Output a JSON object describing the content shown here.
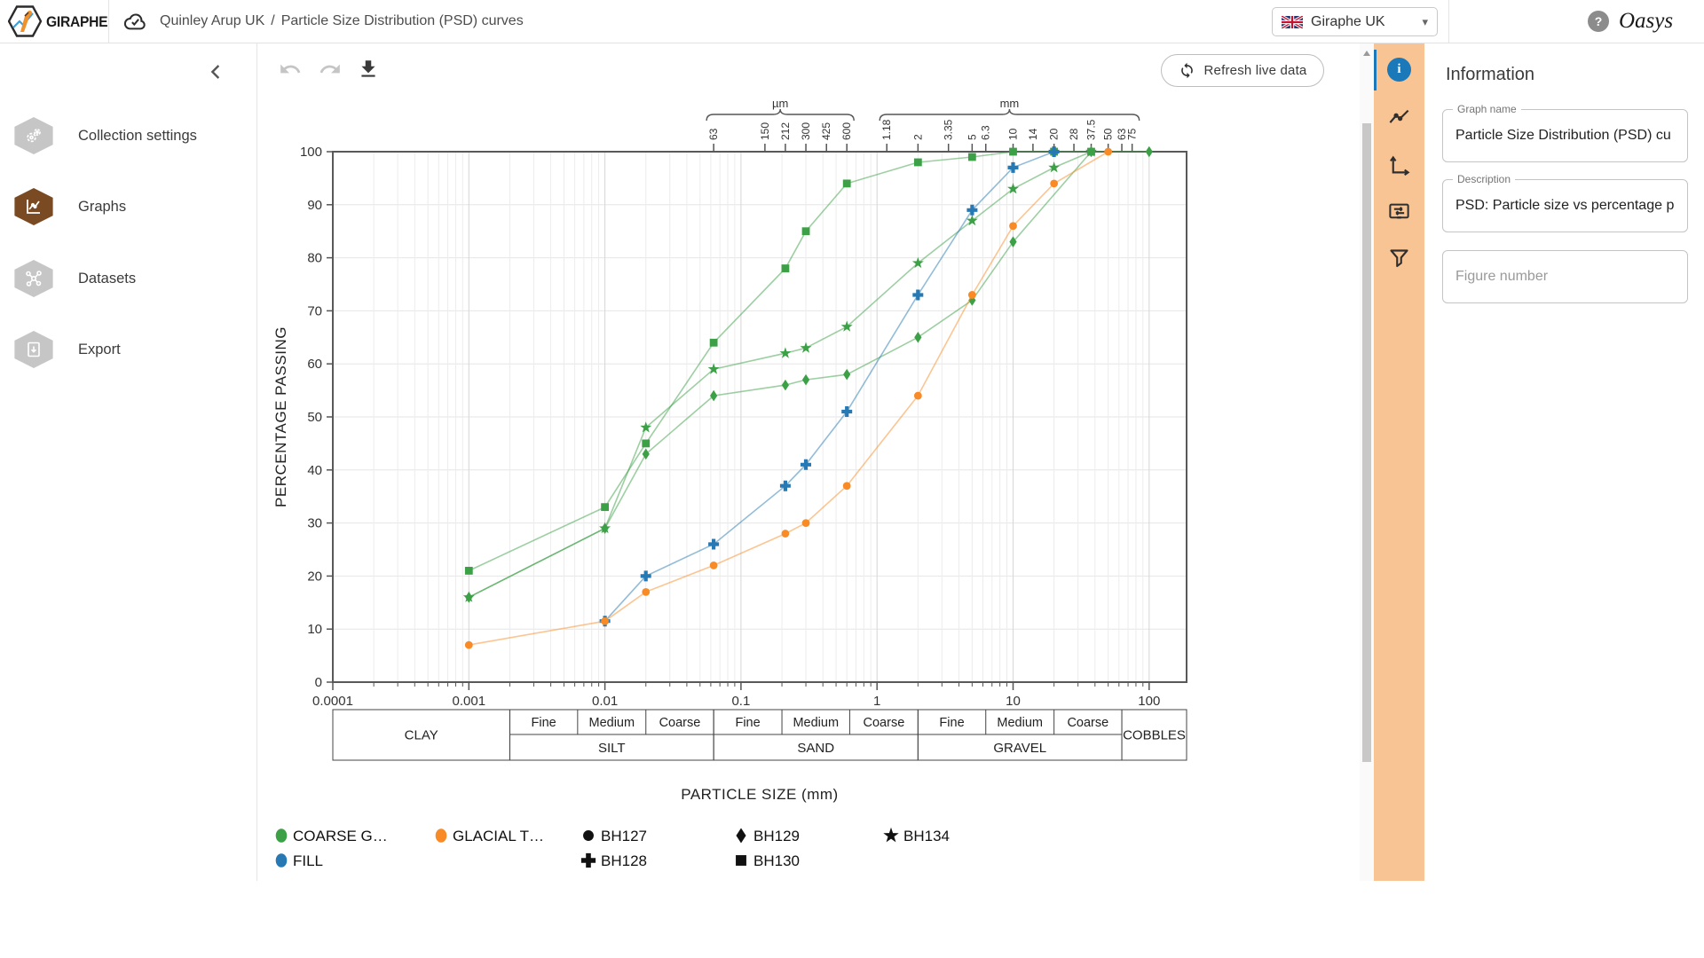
{
  "top_bar": {
    "logo_text": "GIRAPHE",
    "breadcrumb": {
      "project": "Quinley Arup UK",
      "separator": "/",
      "page": "Particle Size Distribution (PSD) curves"
    },
    "workspace_button": {
      "label": "Giraphe UK",
      "caret": "▾"
    },
    "help_glyph": "?",
    "brand": "Oasys"
  },
  "sidebar": {
    "items": [
      {
        "label": "Collection settings",
        "active": false
      },
      {
        "label": "Graphs",
        "active": true
      },
      {
        "label": "Datasets",
        "active": false
      },
      {
        "label": "Export",
        "active": false
      }
    ]
  },
  "toolbar": {
    "refresh_label": "Refresh live data"
  },
  "right_panel": {
    "title": "Information",
    "tabs": [
      "information",
      "series",
      "axes",
      "annotations",
      "filter"
    ],
    "info_glyph": "i",
    "fields": [
      {
        "label": "Graph name",
        "value": "Particle Size Distribution (PSD) cu"
      },
      {
        "label": "Description",
        "value": "PSD: Particle size vs percentage p"
      },
      {
        "label": "",
        "value": "",
        "placeholder": "Figure number"
      }
    ]
  },
  "scrollbar": {
    "up_glyph": "▲"
  },
  "chart_data": {
    "type": "line",
    "xlabel": "PARTICLE SIZE (mm)",
    "ylabel": "PERCENTAGE PASSING",
    "x_scale": "log",
    "xlim": [
      0.0001,
      200
    ],
    "ylim": [
      0,
      100
    ],
    "grid": true,
    "y_ticks": [
      0,
      10,
      20,
      30,
      40,
      50,
      60,
      70,
      80,
      90,
      100
    ],
    "x_ticks": [
      {
        "value": 0.0001,
        "label": "0.0001"
      },
      {
        "value": 0.001,
        "label": "0.001"
      },
      {
        "value": 0.01,
        "label": "0.01"
      },
      {
        "value": 0.1,
        "label": "0.1"
      },
      {
        "value": 1,
        "label": "1"
      },
      {
        "value": 10,
        "label": "10"
      },
      {
        "value": 100,
        "label": "100"
      }
    ],
    "sieve_axis": {
      "groups": [
        {
          "unit": "µm",
          "ticks": [
            {
              "label": "63",
              "mm": 0.063
            },
            {
              "label": "150",
              "mm": 0.15
            },
            {
              "label": "212",
              "mm": 0.212
            },
            {
              "label": "300",
              "mm": 0.3
            },
            {
              "label": "425",
              "mm": 0.425
            },
            {
              "label": "600",
              "mm": 0.6
            }
          ]
        },
        {
          "unit": "mm",
          "ticks": [
            {
              "label": "1.18",
              "mm": 1.18
            },
            {
              "label": "2",
              "mm": 2
            },
            {
              "label": "3.35",
              "mm": 3.35
            },
            {
              "label": "5",
              "mm": 5
            },
            {
              "label": "6.3",
              "mm": 6.3
            },
            {
              "label": "10",
              "mm": 10
            },
            {
              "label": "14",
              "mm": 14
            },
            {
              "label": "20",
              "mm": 20
            },
            {
              "label": "28",
              "mm": 28
            },
            {
              "label": "37.5",
              "mm": 37.5
            },
            {
              "label": "50",
              "mm": 50
            },
            {
              "label": "63",
              "mm": 63
            },
            {
              "label": "75",
              "mm": 75
            }
          ]
        }
      ]
    },
    "classification": [
      {
        "label": "CLAY",
        "from": 0.0001,
        "to": 0.002
      },
      {
        "label": "SILT",
        "from": 0.002,
        "to": 0.063,
        "subs": [
          {
            "label": "Fine",
            "from": 0.002,
            "to": 0.0063
          },
          {
            "label": "Medium",
            "from": 0.0063,
            "to": 0.02
          },
          {
            "label": "Coarse",
            "from": 0.02,
            "to": 0.063
          }
        ]
      },
      {
        "label": "SAND",
        "from": 0.063,
        "to": 2,
        "subs": [
          {
            "label": "Fine",
            "from": 0.063,
            "to": 0.2
          },
          {
            "label": "Medium",
            "from": 0.2,
            "to": 0.63
          },
          {
            "label": "Coarse",
            "from": 0.63,
            "to": 2
          }
        ]
      },
      {
        "label": "GRAVEL",
        "from": 2,
        "to": 63,
        "subs": [
          {
            "label": "Fine",
            "from": 2,
            "to": 6.3
          },
          {
            "label": "Medium",
            "from": 6.3,
            "to": 20
          },
          {
            "label": "Coarse",
            "from": 20,
            "to": 63
          }
        ]
      },
      {
        "label": "COBBLES",
        "from": 63,
        "to": 200
      }
    ],
    "series": [
      {
        "name": "COARSE G…",
        "borehole": "BH130",
        "color": "#3ca046",
        "marker": "square",
        "x": [
          0.001,
          0.01,
          0.02,
          0.063,
          0.212,
          0.3,
          0.6,
          2,
          5,
          10,
          20,
          37.5
        ],
        "y": [
          21,
          33,
          45,
          64,
          78,
          85,
          94,
          98,
          99,
          100,
          100,
          100
        ]
      },
      {
        "name": "COARSE G…",
        "borehole": "BH134",
        "color": "#3ca046",
        "marker": "star",
        "x": [
          0.001,
          0.01,
          0.02,
          0.063,
          0.212,
          0.3,
          0.6,
          2,
          5,
          10,
          20,
          37.5
        ],
        "y": [
          16,
          29,
          48,
          59,
          62,
          63,
          67,
          79,
          87,
          93,
          97,
          100
        ]
      },
      {
        "name": "COARSE G…",
        "borehole": "BH129",
        "color": "#3ca046",
        "marker": "diamond",
        "x": [
          0.001,
          0.01,
          0.02,
          0.063,
          0.212,
          0.3,
          0.6,
          2,
          5,
          10,
          37.5,
          100
        ],
        "y": [
          16,
          29,
          43,
          54,
          56,
          57,
          58,
          65,
          72,
          83,
          100,
          100
        ]
      },
      {
        "name": "FILL",
        "borehole": "BH128",
        "color": "#2679b2",
        "marker": "plus",
        "x": [
          0.01,
          0.02,
          0.063,
          0.212,
          0.3,
          0.6,
          2,
          5,
          10,
          20
        ],
        "y": [
          11.5,
          20,
          26,
          37,
          41,
          51,
          73,
          89,
          97,
          100
        ]
      },
      {
        "name": "GLACIAL T…",
        "borehole": "BH127",
        "color": "#f98b26",
        "marker": "circle",
        "x": [
          0.001,
          0.01,
          0.02,
          0.063,
          0.212,
          0.3,
          0.6,
          2,
          5,
          10,
          20,
          50
        ],
        "y": [
          7,
          11.5,
          17,
          22,
          28,
          30,
          37,
          54,
          73,
          86,
          94,
          100
        ]
      }
    ],
    "legend": {
      "position": "bottom",
      "colors": [
        {
          "label": "COARSE G…",
          "color": "#3ca046"
        },
        {
          "label": "GLACIAL T…",
          "color": "#f98b26"
        },
        {
          "label": "FILL",
          "color": "#2679b2"
        }
      ],
      "markers": [
        {
          "label": "BH127",
          "marker": "circle"
        },
        {
          "label": "BH129",
          "marker": "diamond"
        },
        {
          "label": "BH134",
          "marker": "star"
        },
        {
          "label": "BH128",
          "marker": "plus"
        },
        {
          "label": "BH130",
          "marker": "square"
        }
      ]
    }
  }
}
